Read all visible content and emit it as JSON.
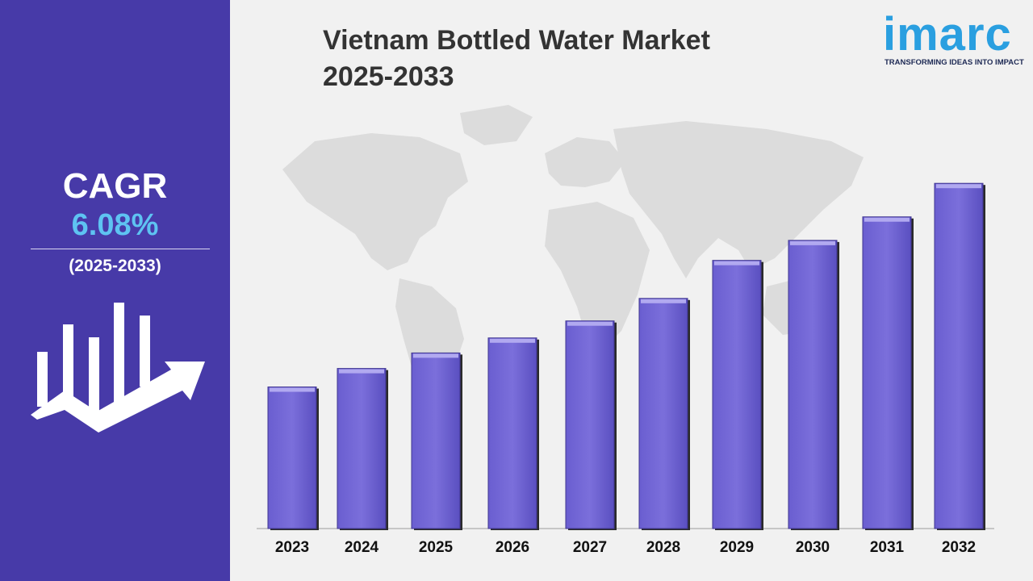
{
  "title_line1": "Vietnam Bottled Water Market",
  "title_line2": "2025-2033",
  "logo": {
    "word": "imarc",
    "tagline": "TRANSFORMING IDEAS INTO IMPACT"
  },
  "sidebar": {
    "cagr_label": "CAGR",
    "cagr_value": "6.08%",
    "period": "(2025-2033)"
  },
  "colors": {
    "sidebar": "#473aa8",
    "bar": "#7b6fdb",
    "cagr_value": "#5ec3f2",
    "logo": "#2a9fe0"
  },
  "icons": {
    "growth": "bar-chart-growth-arrow-icon",
    "map": "world-map-background"
  },
  "chart_data": {
    "type": "bar",
    "categories": [
      "2023",
      "2024",
      "2025",
      "2026",
      "2027",
      "2028",
      "2029",
      "2030",
      "2031",
      "2032"
    ],
    "values": [
      2.83,
      3.2,
      3.51,
      3.81,
      4.15,
      4.6,
      5.36,
      5.76,
      6.23,
      6.9
    ],
    "title": "Vietnam Bottled Water Market 2025-2033",
    "xlabel": "",
    "ylabel": "",
    "ylim": [
      0,
      7.5
    ],
    "grid": false,
    "legend": "none"
  }
}
